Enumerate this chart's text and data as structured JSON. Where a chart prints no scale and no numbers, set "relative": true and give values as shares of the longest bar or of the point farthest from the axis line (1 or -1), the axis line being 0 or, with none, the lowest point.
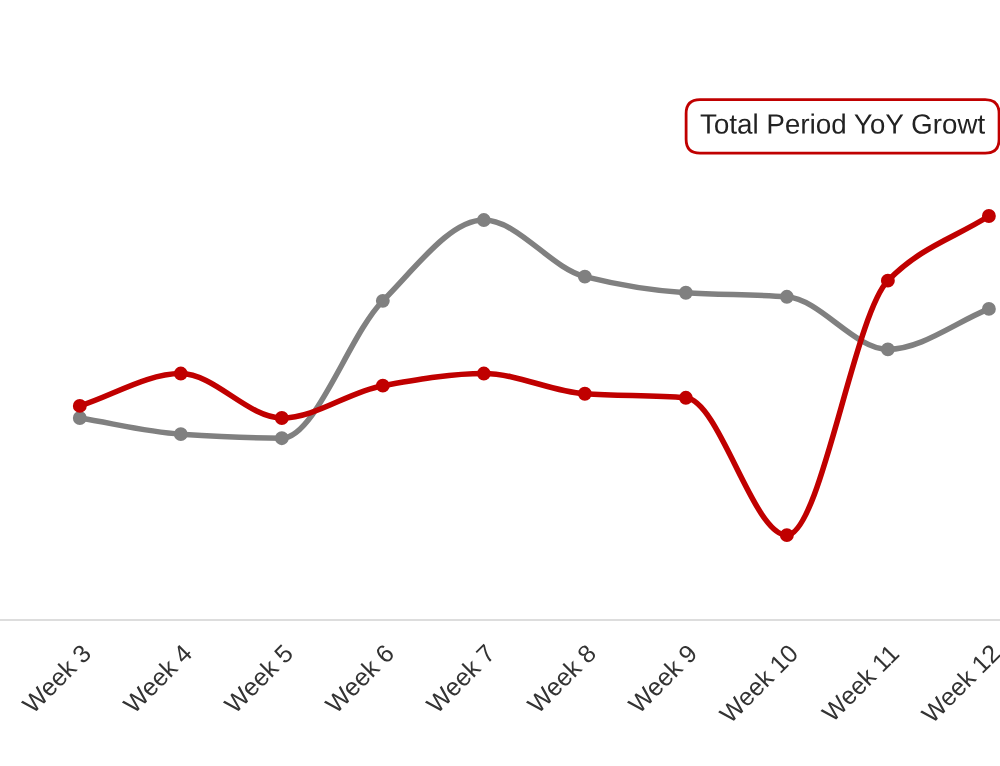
{
  "chart_data": {
    "type": "line",
    "relative": true,
    "marker": "circle",
    "line_style": "solid",
    "grid": false,
    "legend": false,
    "categories": [
      "Week 3",
      "Week 4",
      "Week 5",
      "Week 6",
      "Week 7",
      "Week 8",
      "Week 9",
      "Week 10",
      "Week 11",
      "Week 12"
    ],
    "series": [
      {
        "color": "#808080",
        "values": [
          0.5,
          0.46,
          0.45,
          0.79,
          0.99,
          0.85,
          0.81,
          0.8,
          0.67,
          0.77
        ]
      },
      {
        "color": "#c00000",
        "values": [
          0.53,
          0.61,
          0.5,
          0.58,
          0.61,
          0.56,
          0.55,
          0.21,
          0.84,
          1.0
        ]
      }
    ],
    "annotations": [
      "Total Period YoY Growt"
    ]
  }
}
